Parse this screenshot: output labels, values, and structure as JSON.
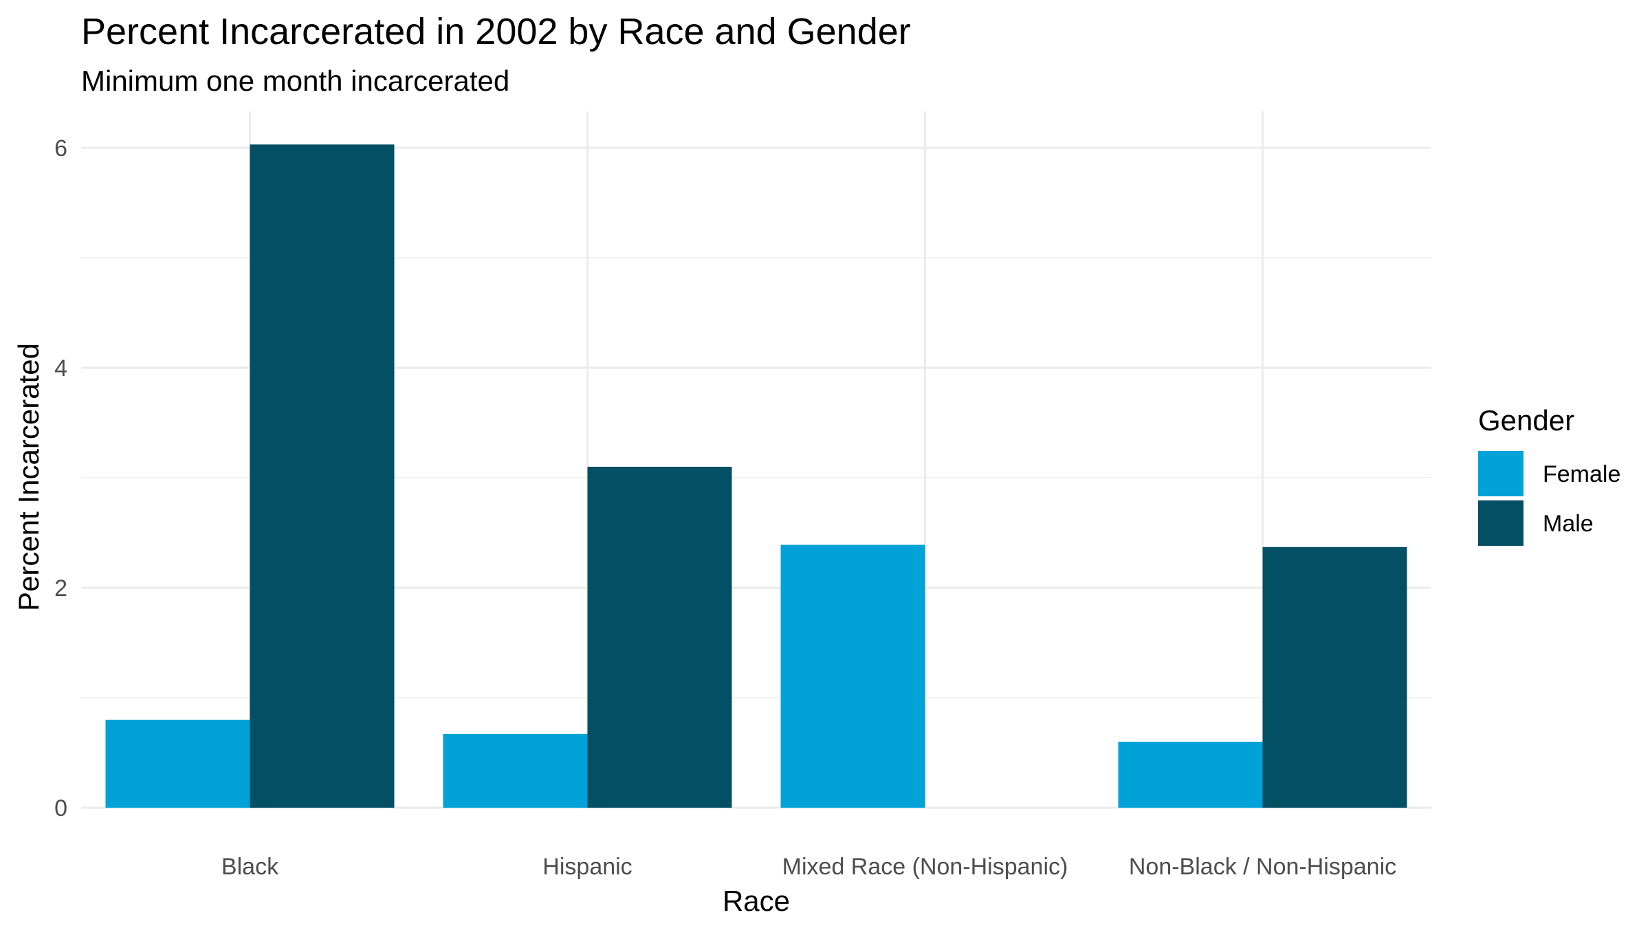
{
  "chart_data": {
    "type": "bar",
    "title": "Percent Incarcerated in 2002 by Race and Gender",
    "subtitle": "Minimum one month incarcerated",
    "xlabel": "Race",
    "ylabel": "Percent Incarcerated",
    "categories": [
      "Black",
      "Hispanic",
      "Mixed Race (Non-Hispanic)",
      "Non-Black / Non-Hispanic"
    ],
    "series": [
      {
        "name": "Female",
        "color": "#00A2D8",
        "values": [
          0.8,
          0.67,
          2.39,
          0.6
        ]
      },
      {
        "name": "Male",
        "color": "#034F64",
        "values": [
          6.03,
          3.1,
          null,
          2.37
        ]
      }
    ],
    "ylim": [
      0,
      6.3
    ],
    "yticks": [
      0,
      2,
      4,
      6
    ],
    "grid": true,
    "legend": {
      "title": "Gender",
      "position": "right"
    }
  }
}
